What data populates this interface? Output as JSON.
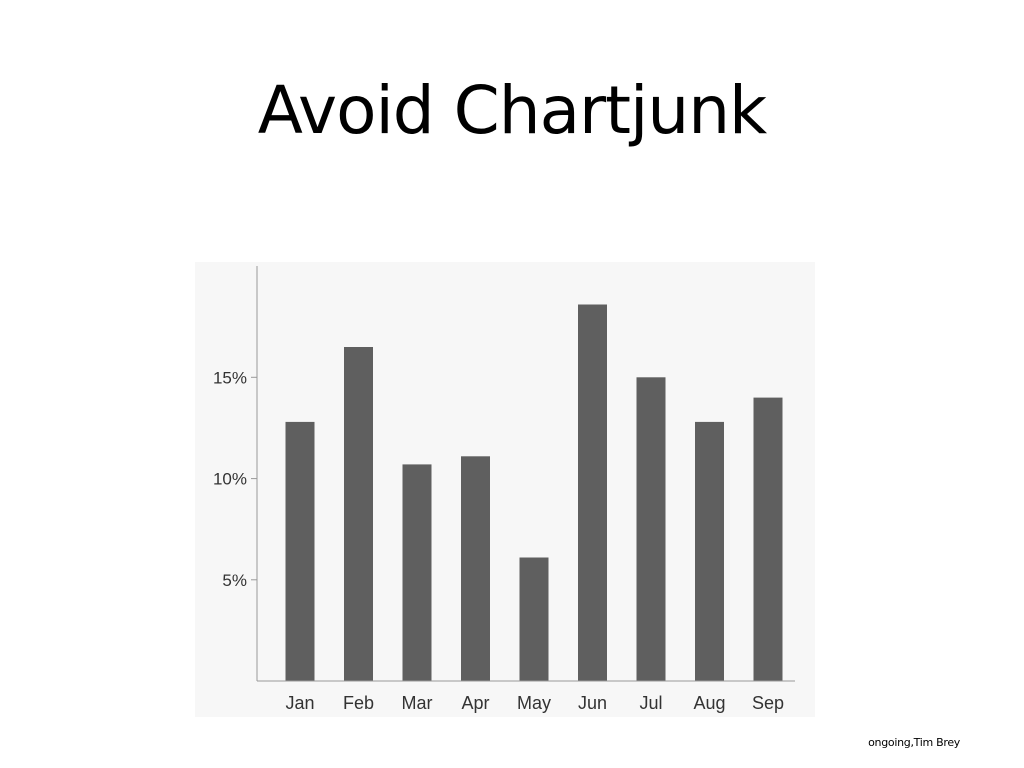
{
  "slide": {
    "title": "Avoid Chartjunk",
    "credit": "ongoing,Tim Brey"
  },
  "chart_data": {
    "type": "bar",
    "categories": [
      "Jan",
      "Feb",
      "Mar",
      "Apr",
      "May",
      "Jun",
      "Jul",
      "Aug",
      "Sep"
    ],
    "values": [
      12.8,
      16.5,
      10.7,
      11.1,
      6.1,
      18.6,
      15.0,
      12.8,
      14.0
    ],
    "y_ticks": [
      5,
      10,
      15
    ],
    "y_tick_labels": [
      "5%",
      "10%",
      "15%"
    ],
    "ylim": [
      0,
      20.5
    ],
    "grid": false,
    "colors": {
      "bar": "#5f5f5f",
      "axis": "#999999",
      "plot_background": "#f7f7f7",
      "tick_text": "#333333"
    }
  }
}
